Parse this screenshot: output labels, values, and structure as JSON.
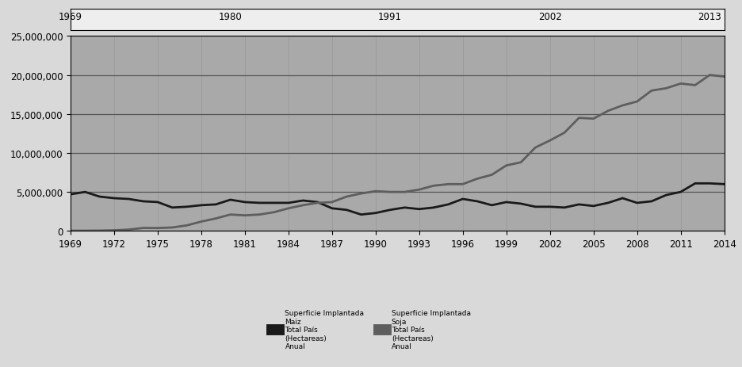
{
  "chart_data": [
    {
      "type": "line",
      "x": [
        1969,
        1970,
        1971,
        1972,
        1973,
        1974,
        1975,
        1976,
        1977,
        1978,
        1979,
        1980,
        1981,
        1982,
        1983,
        1984,
        1985,
        1986,
        1987,
        1988,
        1989,
        1990,
        1991,
        1992,
        1993,
        1994,
        1995,
        1996,
        1997,
        1998,
        1999,
        2000,
        2001,
        2002,
        2003,
        2004,
        2005,
        2006,
        2007,
        2008,
        2009,
        2010,
        2011,
        2012,
        2013,
        2014
      ],
      "series": [
        {
          "name": "Superficie Implantada\nMaiz\nTotal País\n(Hectareas)\nAnual",
          "color": "#1a1a1a",
          "values": [
            4700000,
            5000000,
            4400000,
            4200000,
            4100000,
            3800000,
            3700000,
            3000000,
            3100000,
            3300000,
            3400000,
            4000000,
            3700000,
            3600000,
            3600000,
            3600000,
            3900000,
            3700000,
            2900000,
            2700000,
            2100000,
            2300000,
            2700000,
            3000000,
            2800000,
            3000000,
            3400000,
            4100000,
            3800000,
            3300000,
            3700000,
            3500000,
            3100000,
            3100000,
            3000000,
            3400000,
            3200000,
            3600000,
            4200000,
            3600000,
            3800000,
            4600000,
            5000000,
            6100000,
            6100000,
            6000000
          ]
        },
        {
          "name": "Superficie Implantada\nSoja\nTotal País\n(Hectareas)\nAnual",
          "color": "#5e5e5e",
          "values": [
            30000,
            30000,
            40000,
            80000,
            170000,
            380000,
            370000,
            440000,
            710000,
            1200000,
            1600000,
            2100000,
            2000000,
            2100000,
            2400000,
            2900000,
            3300000,
            3600000,
            3700000,
            4400000,
            4800000,
            5100000,
            5000000,
            5000000,
            5300000,
            5800000,
            6000000,
            6000000,
            6700000,
            7200000,
            8400000,
            8800000,
            10700000,
            11600000,
            12600000,
            14500000,
            14400000,
            15400000,
            16100000,
            16600000,
            18000000,
            18300000,
            18900000,
            18700000,
            20000000,
            19800000
          ]
        }
      ],
      "xlim": [
        1969,
        2014
      ],
      "xticks": [
        1969,
        1972,
        1975,
        1978,
        1981,
        1984,
        1987,
        1990,
        1993,
        1996,
        1999,
        2002,
        2005,
        2008,
        2011,
        2014
      ],
      "ylim": [
        0,
        25000000
      ],
      "yticks": [
        0,
        {
          "value": 5000000,
          "label": "5,000,000"
        },
        {
          "value": 10000000,
          "label": "10,000,000"
        },
        {
          "value": 15000000,
          "label": "15,000,000"
        },
        {
          "value": 20000000,
          "label": "20,000,000"
        },
        {
          "value": 25000000,
          "label": "25,000,000"
        }
      ],
      "grid": true,
      "legend": "lower center"
    },
    {
      "type": "navigator",
      "xlim": [
        1969,
        2014
      ],
      "xticks": [
        1969,
        1980,
        1991,
        2002,
        2013
      ],
      "tick_labels": "x"
    }
  ]
}
